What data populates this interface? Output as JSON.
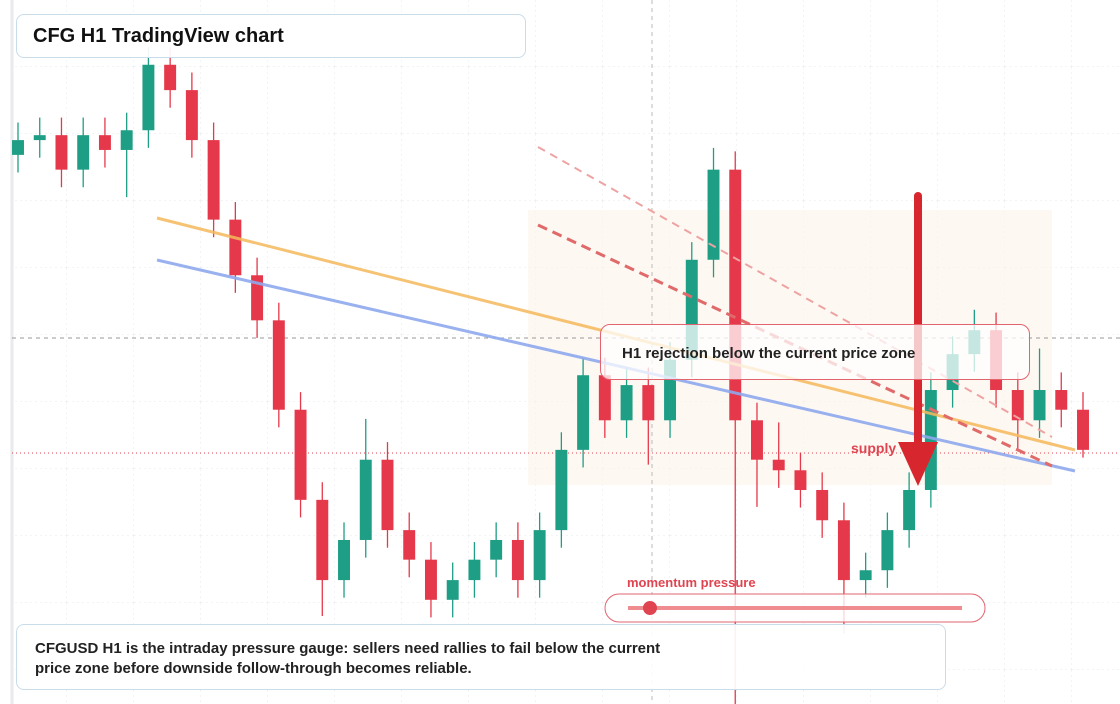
{
  "chart_data": {
    "type": "candlestick",
    "title": "CFG H1 TradingView chart",
    "annotation": "H1 rejection below the current price zone",
    "zone_label": "supply",
    "gauge_label": "momentum pressure",
    "caption": "CFGUSD H1 is the intraday pressure gauge: sellers need rallies to fail below the current price zone before downside follow-through becomes reliable.",
    "up_color": "#1f9e86",
    "down_color": "#e5394b",
    "ylim": [
      0,
      100
    ],
    "open": [
      78.0,
      80.1,
      80.8,
      75.9,
      80.8,
      78.7,
      81.5,
      90.8,
      87.2,
      80.1,
      68.8,
      60.9,
      54.5,
      41.8,
      29.0,
      17.6,
      23.3,
      34.7,
      24.7,
      20.5,
      14.8,
      17.6,
      20.5,
      23.3,
      17.6,
      24.7,
      36.1,
      46.7,
      40.3,
      45.3,
      40.3,
      48.9,
      63.1,
      75.9,
      40.3,
      34.7,
      33.2,
      30.4,
      26.1,
      17.6,
      19.0,
      24.7,
      30.4,
      44.6,
      49.7,
      53.1,
      44.6,
      40.3,
      44.6,
      41.8
    ],
    "high": [
      82.6,
      83.3,
      83.3,
      83.3,
      83.3,
      84.0,
      93.3,
      93.3,
      89.7,
      82.6,
      71.3,
      63.4,
      57.0,
      44.3,
      31.5,
      25.8,
      40.5,
      37.2,
      27.2,
      23.0,
      20.1,
      23.0,
      25.8,
      25.8,
      27.2,
      38.6,
      49.2,
      49.2,
      47.8,
      47.8,
      51.4,
      65.6,
      79.0,
      78.5,
      42.8,
      40.0,
      35.7,
      32.9,
      28.6,
      21.5,
      27.2,
      32.9,
      47.1,
      52.2,
      56.0,
      55.6,
      47.1,
      50.5,
      47.1,
      44.3
    ],
    "low": [
      75.5,
      77.6,
      73.4,
      73.4,
      76.2,
      72.0,
      79.0,
      84.7,
      77.6,
      66.3,
      58.4,
      52.0,
      39.3,
      26.5,
      12.5,
      15.1,
      20.8,
      22.2,
      18.0,
      12.3,
      12.3,
      15.1,
      18.0,
      15.1,
      15.1,
      22.2,
      33.6,
      37.8,
      37.8,
      34.0,
      37.8,
      46.4,
      60.6,
      0,
      28.0,
      30.7,
      27.9,
      23.6,
      10.0,
      15.1,
      16.5,
      22.2,
      27.9,
      42.1,
      47.2,
      42.1,
      36.0,
      37.8,
      39.3,
      35.0
    ],
    "close": [
      80.1,
      80.8,
      75.9,
      80.8,
      78.7,
      81.5,
      90.8,
      87.2,
      80.1,
      68.8,
      60.9,
      54.5,
      41.8,
      29.0,
      17.6,
      23.3,
      34.7,
      24.7,
      20.5,
      14.8,
      17.6,
      20.5,
      23.3,
      17.6,
      24.7,
      36.1,
      46.7,
      40.3,
      45.3,
      40.3,
      48.9,
      63.1,
      75.9,
      40.3,
      34.7,
      33.2,
      30.4,
      26.1,
      17.6,
      19.0,
      24.7,
      30.4,
      44.6,
      49.7,
      53.1,
      44.6,
      40.3,
      44.6,
      41.8,
      36.1
    ]
  }
}
